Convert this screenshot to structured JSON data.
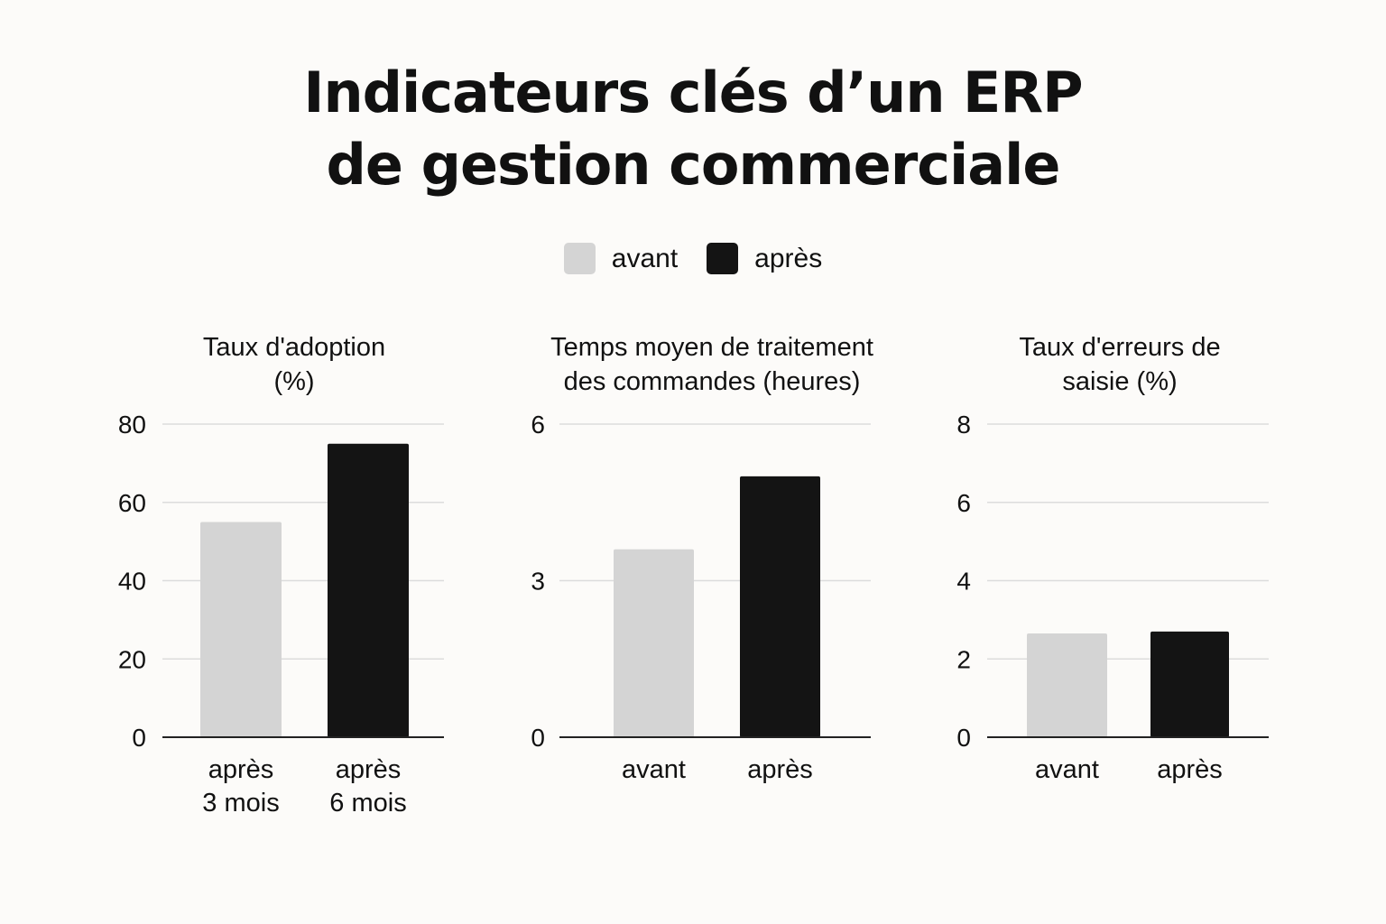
{
  "title": [
    "Indicateurs clés d’un ERP",
    "de gestion commerciale"
  ],
  "legend": {
    "placement": "top-center",
    "items": [
      {
        "label": "avant",
        "color": "#d4d4d4"
      },
      {
        "label": "après",
        "color": "#141414"
      }
    ]
  },
  "colors": {
    "background": "#fcfbf9",
    "grid": "#dcdcdc",
    "axis": "#222222"
  },
  "chart_data": [
    {
      "type": "bar",
      "title": [
        "Taux d'adoption",
        "(%)"
      ],
      "categories": [
        [
          "après",
          "3 mois"
        ],
        [
          "après",
          "6 mois"
        ]
      ],
      "values": [
        55,
        75
      ],
      "colors": [
        "#d4d4d4",
        "#141414"
      ],
      "ylim": [
        0,
        80
      ],
      "yticks": [
        0,
        20,
        40,
        60,
        80
      ],
      "grid": true
    },
    {
      "type": "bar",
      "title": [
        "Temps moyen de traitement",
        "des commandes (heures)"
      ],
      "categories": [
        [
          "avant"
        ],
        [
          "après"
        ]
      ],
      "values": [
        3.6,
        5.0
      ],
      "colors": [
        "#d4d4d4",
        "#141414"
      ],
      "ylim": [
        0,
        6
      ],
      "yticks": [
        0,
        3,
        6
      ],
      "grid": true
    },
    {
      "type": "bar",
      "title": [
        "Taux d'erreurs de",
        "saisie (%)"
      ],
      "categories": [
        [
          "avant"
        ],
        [
          "après"
        ]
      ],
      "values": [
        2.65,
        2.7
      ],
      "colors": [
        "#d4d4d4",
        "#141414"
      ],
      "ylim": [
        0,
        8
      ],
      "yticks": [
        0,
        2,
        4,
        6,
        8
      ],
      "grid": true
    }
  ]
}
